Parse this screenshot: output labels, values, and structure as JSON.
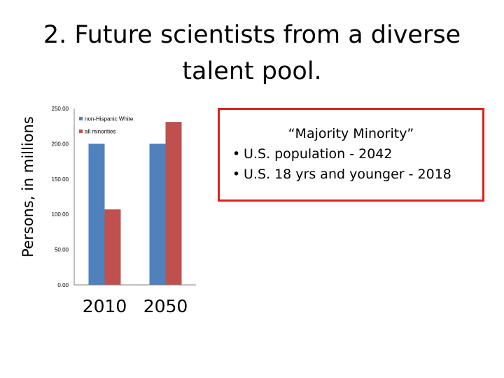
{
  "slide": {
    "title": "2. Future scientists from a diverse talent pool."
  },
  "callout": {
    "heading": "“Majority Minority”",
    "bullets": [
      "U.S. population - 2042",
      "U.S. 18 yrs and younger - 2018"
    ],
    "border_color": "#dd2020"
  },
  "chart_data": {
    "type": "bar",
    "categories": [
      "2010",
      "2050"
    ],
    "series": [
      {
        "name": "non-Hispanic White",
        "values": [
          200,
          200
        ],
        "color": "#4f81bd"
      },
      {
        "name": "all minorities",
        "values": [
          107,
          231
        ],
        "color": "#c0504d"
      }
    ],
    "ylabel": "Persons, in millions",
    "ylim": [
      0,
      250
    ],
    "yticks": [
      "0.00",
      "50.00",
      "100.00",
      "150.00",
      "200.00",
      "250.00"
    ],
    "legend": "top-left inside plot",
    "grid": false
  }
}
